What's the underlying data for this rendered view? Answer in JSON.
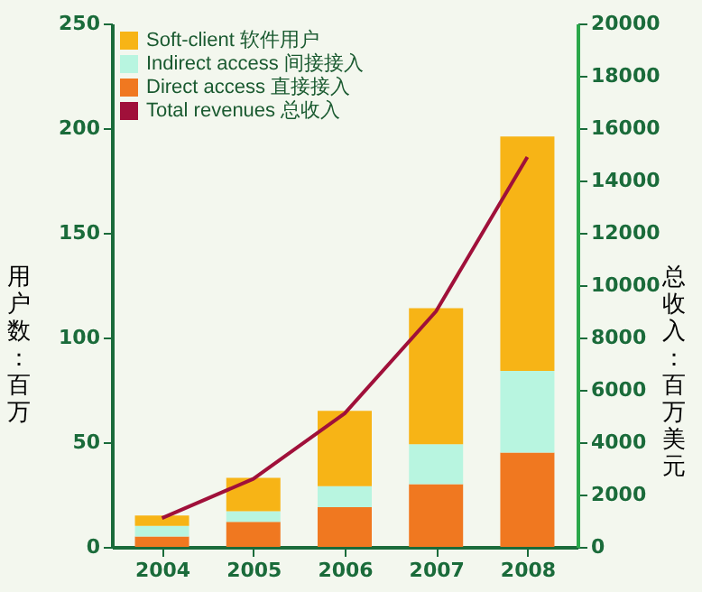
{
  "chart_data": {
    "type": "bar",
    "stacked": true,
    "categories": [
      "2004",
      "2005",
      "2006",
      "2007",
      "2008"
    ],
    "ylabel": "用户数：百万",
    "y2label": "总收入：百万美元",
    "ylim": [
      0,
      250
    ],
    "yticks": [
      0,
      50,
      100,
      150,
      200,
      250
    ],
    "y2lim": [
      0,
      20000
    ],
    "y2ticks": [
      0,
      2000,
      4000,
      6000,
      8000,
      10000,
      12000,
      14000,
      16000,
      18000,
      20000
    ],
    "legend": "top left",
    "grid": false,
    "series": [
      {
        "name": "Direct access 直接接入",
        "color": "#f07820",
        "values": [
          5,
          12,
          19,
          30,
          45
        ]
      },
      {
        "name": "Indirect access 间接接入",
        "color": "#b8f5e0",
        "values": [
          5,
          5,
          10,
          19,
          39
        ]
      },
      {
        "name": "Soft-client 软件用户",
        "color": "#f7b416",
        "values": [
          5,
          16,
          36,
          65,
          112
        ]
      },
      {
        "name": "Total revenues 总收入",
        "color": "#a0103a",
        "type": "line",
        "axis": "y2",
        "values": [
          1100,
          2600,
          5100,
          9000,
          14900
        ]
      }
    ]
  }
}
